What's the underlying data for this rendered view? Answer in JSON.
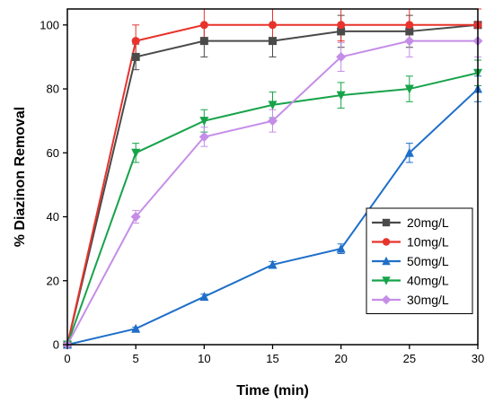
{
  "chart_data": {
    "type": "line",
    "xlabel": "Time (min)",
    "ylabel": "% Diazinon Removal",
    "xlim": [
      0,
      30
    ],
    "ylim": [
      0,
      105
    ],
    "xticks": [
      0,
      5,
      10,
      15,
      20,
      25,
      30
    ],
    "yticks": [
      0,
      20,
      40,
      60,
      80,
      100
    ],
    "x": [
      0,
      5,
      10,
      15,
      20,
      25,
      30
    ],
    "grid": false,
    "legend_position": "right",
    "series": [
      {
        "name": "20mg/L",
        "color": "#4a4a4a",
        "marker": "square",
        "values": [
          0,
          90,
          95,
          95,
          98,
          98,
          100
        ],
        "errors": [
          0,
          4,
          5,
          5,
          5,
          5,
          5
        ]
      },
      {
        "name": "10mg/L",
        "color": "#e8332c",
        "marker": "circle",
        "values": [
          0,
          95,
          100,
          100,
          100,
          100,
          100
        ],
        "errors": [
          0,
          5,
          5,
          5,
          5,
          5,
          5
        ]
      },
      {
        "name": "50mg/L",
        "color": "#1f6fc9",
        "marker": "triangle-up",
        "values": [
          0,
          5,
          15,
          25,
          30,
          60,
          80
        ],
        "errors": [
          0,
          0.5,
          0.8,
          1,
          1.5,
          3,
          4
        ]
      },
      {
        "name": "40mg/L",
        "color": "#17a34a",
        "marker": "triangle-down",
        "values": [
          0,
          60,
          70,
          75,
          78,
          80,
          85
        ],
        "errors": [
          0,
          3,
          3.5,
          4,
          4,
          4,
          4
        ]
      },
      {
        "name": "30mg/L",
        "color": "#c58de8",
        "marker": "diamond",
        "values": [
          0,
          40,
          65,
          70,
          90,
          95,
          95
        ],
        "errors": [
          0,
          2,
          3,
          3.5,
          4.5,
          5,
          5
        ]
      }
    ]
  }
}
